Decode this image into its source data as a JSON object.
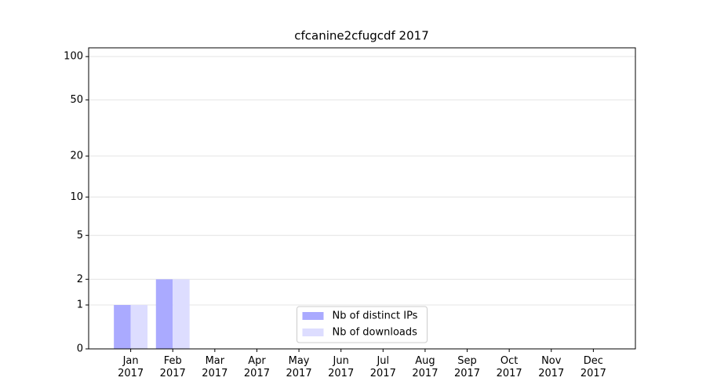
{
  "chart_data": {
    "type": "bar",
    "title": "cfcanine2cfugcdf 2017",
    "categories": [
      "Jan\n2017",
      "Feb\n2017",
      "Mar\n2017",
      "Apr\n2017",
      "May\n2017",
      "Jun\n2017",
      "Jul\n2017",
      "Aug\n2017",
      "Sep\n2017",
      "Oct\n2017",
      "Nov\n2017",
      "Dec\n2017"
    ],
    "series": [
      {
        "name": "Nb of distinct IPs",
        "color": "#aaaaff",
        "values": [
          1,
          2,
          0,
          0,
          0,
          0,
          0,
          0,
          0,
          0,
          0,
          0
        ]
      },
      {
        "name": "Nb of downloads",
        "color": "#ddddff",
        "values": [
          1,
          2,
          0,
          0,
          0,
          0,
          0,
          0,
          0,
          0,
          0,
          0
        ]
      }
    ],
    "yscale": "log1p",
    "ylim": [
      0,
      115
    ],
    "yticks": [
      0,
      1,
      2,
      5,
      10,
      20,
      50,
      100
    ],
    "grid": true,
    "legend": "lower center"
  }
}
